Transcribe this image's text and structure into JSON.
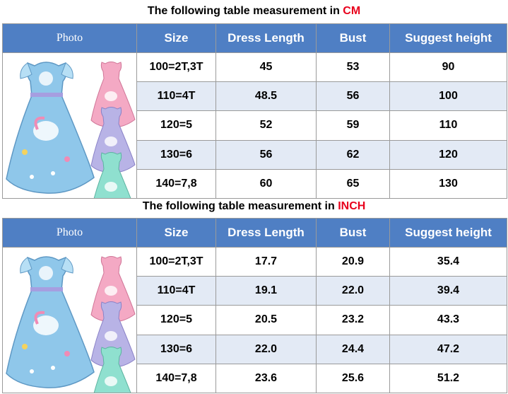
{
  "tables": [
    {
      "title_prefix": "The following table measurement in",
      "unit": "CM",
      "headers": [
        "Photo",
        "Size",
        "Dress Length",
        "Bust",
        "Suggest height"
      ],
      "rows": [
        [
          "100=2T,3T",
          "45",
          "53",
          "90"
        ],
        [
          "110=4T",
          "48.5",
          "56",
          "100"
        ],
        [
          "120=5",
          "52",
          "59",
          "110"
        ],
        [
          "130=6",
          "56",
          "62",
          "120"
        ],
        [
          "140=7,8",
          "60",
          "65",
          "130"
        ]
      ]
    },
    {
      "title_prefix": "The following table measurement in",
      "unit": "INCH",
      "headers": [
        "Photo",
        "Size",
        "Dress Length",
        "Bust",
        "Suggest height"
      ],
      "rows": [
        [
          "100=2T,3T",
          "17.7",
          "20.9",
          "35.4"
        ],
        [
          "110=4T",
          "19.1",
          "22.0",
          "39.4"
        ],
        [
          "120=5",
          "20.5",
          "23.2",
          "43.3"
        ],
        [
          "130=6",
          "22.0",
          "24.4",
          "47.2"
        ],
        [
          "140=7,8",
          "23.6",
          "25.6",
          "51.2"
        ]
      ]
    }
  ],
  "photo": {
    "main_dress_color": "#8fc7ea",
    "variant_colors": [
      "#f4a9c4",
      "#b8b3e6",
      "#8fe0cf"
    ]
  },
  "colors": {
    "header_bg": "#4f7fc4",
    "alt_row_bg": "#e3eaf5",
    "unit_red": "#e8001c"
  }
}
